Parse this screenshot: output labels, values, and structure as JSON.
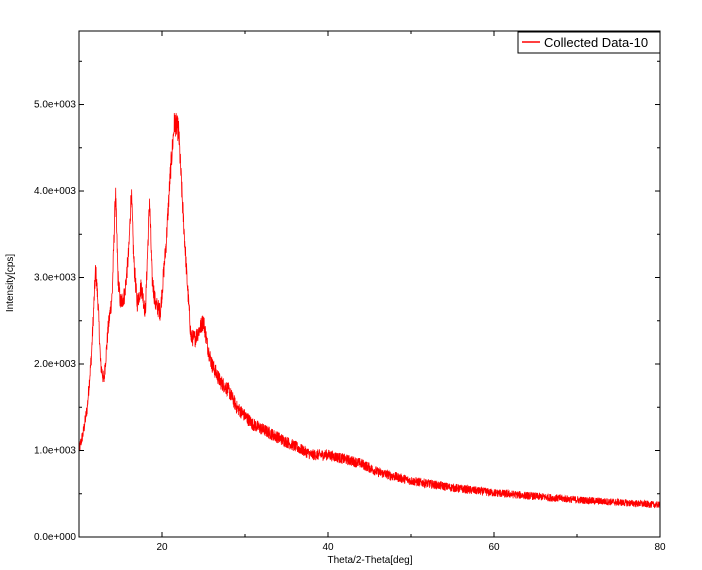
{
  "chart_data": {
    "type": "line",
    "xlabel": "Theta/2-Theta[deg]",
    "ylabel": "Intensity[cps]",
    "xlim": [
      10,
      80
    ],
    "ylim": [
      0,
      5850
    ],
    "x_ticks": [
      20,
      40,
      60,
      80
    ],
    "x_tick_labels": [
      "20",
      "40",
      "60",
      "80"
    ],
    "y_ticks": [
      0,
      1000,
      2000,
      3000,
      4000,
      5000
    ],
    "y_tick_labels": [
      "0.0e+000",
      "1.0e+003",
      "2.0e+003",
      "3.0e+003",
      "4.0e+003",
      "5.0e+003"
    ],
    "grid": false,
    "legend_position": "top-right",
    "series": [
      {
        "name": "Collected Data-10",
        "color": "#ff0000",
        "noise_amplitude": 110,
        "x": [
          10,
          10.5,
          11,
          11.5,
          12,
          12.3,
          12.6,
          13,
          13.5,
          14,
          14.4,
          14.7,
          15,
          15.5,
          16,
          16.3,
          16.6,
          17,
          17.5,
          18,
          18.5,
          18.8,
          19.2,
          19.8,
          20.5,
          21,
          21.5,
          22,
          22.5,
          23,
          23.5,
          24,
          24.5,
          25,
          25.5,
          26,
          27,
          28,
          29,
          30,
          31,
          32,
          34,
          36,
          38,
          40,
          42,
          44,
          46,
          48,
          50,
          55,
          60,
          65,
          70,
          75,
          80
        ],
        "y": [
          1000,
          1200,
          1500,
          2100,
          3100,
          2700,
          2000,
          1800,
          2400,
          2800,
          4000,
          3000,
          2700,
          2800,
          3300,
          4000,
          3200,
          2700,
          2900,
          2600,
          3900,
          3000,
          2700,
          2600,
          3400,
          4200,
          4800,
          4700,
          3800,
          3000,
          2300,
          2300,
          2400,
          2500,
          2200,
          2000,
          1800,
          1700,
          1500,
          1400,
          1300,
          1250,
          1150,
          1050,
          950,
          950,
          900,
          850,
          750,
          700,
          650,
          570,
          510,
          470,
          430,
          400,
          370
        ]
      }
    ]
  }
}
